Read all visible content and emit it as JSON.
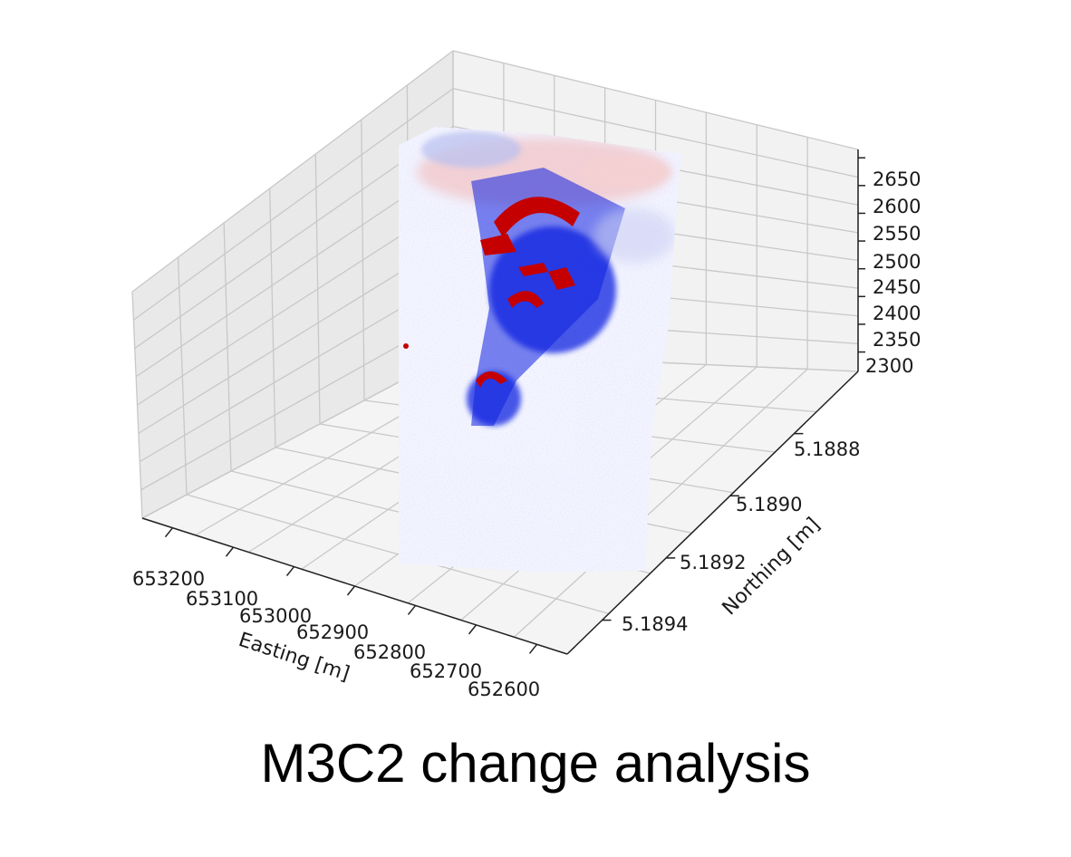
{
  "caption": "M3C2 change analysis",
  "colors": {
    "pane_back": "#f2f2f2",
    "pane_side": "#e9e9e9",
    "pane_floor": "#f4f4f4",
    "grid": "#c8c8c8",
    "axis_line": "#222222",
    "increase": "#c40000",
    "decrease": "#1020e0",
    "neutral": "#ffffff"
  },
  "chart_data": {
    "type": "scatter",
    "projection": "3d",
    "colormap": "bwr",
    "grid": true,
    "title": "",
    "xlabel": "Easting [m]",
    "ylabel": "Northing [m]",
    "zlabel": "",
    "x_ticks": [
      "653200",
      "653100",
      "653000",
      "652900",
      "652800",
      "652700",
      "652600"
    ],
    "y_ticks": [
      "5.1888",
      "5.1890",
      "5.1892",
      "5.1894"
    ],
    "z_ticks": [
      "2650",
      "2600",
      "2550",
      "2500",
      "2450",
      "2400",
      "2350",
      "2300"
    ],
    "zlim": [
      2300,
      2650
    ]
  }
}
